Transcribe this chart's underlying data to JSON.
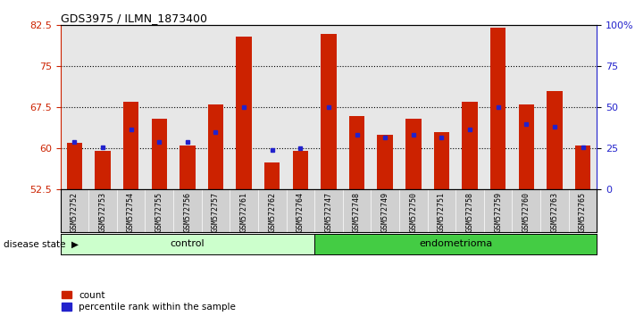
{
  "title": "GDS3975 / ILMN_1873400",
  "samples": [
    "GSM572752",
    "GSM572753",
    "GSM572754",
    "GSM572755",
    "GSM572756",
    "GSM572757",
    "GSM572761",
    "GSM572762",
    "GSM572764",
    "GSM572747",
    "GSM572748",
    "GSM572749",
    "GSM572750",
    "GSM572751",
    "GSM572758",
    "GSM572759",
    "GSM572760",
    "GSM572763",
    "GSM572765"
  ],
  "bar_values": [
    61.0,
    59.5,
    68.5,
    65.5,
    60.5,
    68.0,
    80.5,
    57.5,
    59.5,
    81.0,
    66.0,
    62.5,
    65.5,
    63.0,
    68.5,
    82.0,
    68.0,
    70.5,
    60.5
  ],
  "blue_values": [
    61.2,
    60.3,
    63.5,
    61.2,
    61.2,
    63.0,
    67.5,
    59.8,
    60.0,
    67.5,
    62.5,
    62.0,
    62.5,
    62.0,
    63.5,
    67.5,
    64.5,
    64.0,
    60.3
  ],
  "n_control": 9,
  "n_endometrioma": 10,
  "ymin": 52.5,
  "ymax": 82.5,
  "yticks_left": [
    82.5,
    75.0,
    67.5,
    60.0,
    52.5
  ],
  "ytick_left_labels": [
    "82.5",
    "75",
    "67.5",
    "60",
    "52.5"
  ],
  "yticks_right": [
    82.5,
    75.0,
    67.5,
    60.0,
    52.5
  ],
  "ytick_right_labels": [
    "100%",
    "75",
    "50",
    "25",
    "0"
  ],
  "bar_color": "#cc2200",
  "blue_color": "#2222cc",
  "control_label": "control",
  "endo_label": "endometrioma",
  "disease_label": "disease state",
  "legend_bar": "count",
  "legend_pct": "percentile rank within the sample",
  "control_bg": "#ccffcc",
  "endo_bg": "#44cc44",
  "sample_bg": "#d0d0d0",
  "bar_width": 0.55
}
